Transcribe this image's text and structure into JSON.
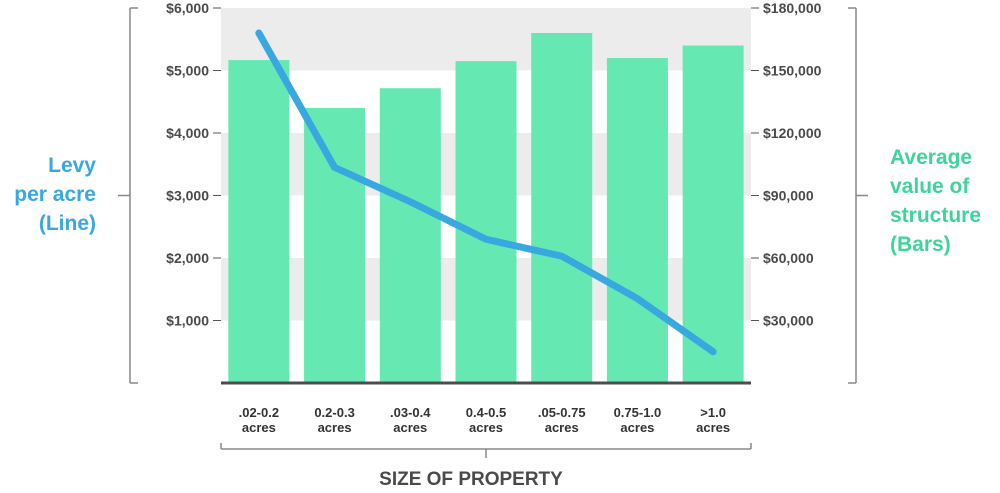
{
  "chart_data": {
    "type": "bar",
    "title": "",
    "categories": [
      [
        ".02-0.2",
        "acres"
      ],
      [
        "0.2-0.3",
        "acres"
      ],
      [
        ".03-0.4",
        "acres"
      ],
      [
        "0.4-0.5",
        "acres"
      ],
      [
        ".05-0.75",
        "acres"
      ],
      [
        "0.75-1.0",
        "acres"
      ],
      [
        ">1.0",
        "acres"
      ]
    ],
    "xlabel": "SIZE OF PROPERTY",
    "left_axis": {
      "label_lines": [
        "Levy",
        "per acre",
        "(Line)"
      ],
      "ylim": [
        0,
        6000
      ],
      "ticks": [
        1000,
        2000,
        3000,
        4000,
        5000,
        6000
      ],
      "tick_labels": [
        "$1,000",
        "$2,000",
        "$3,000",
        "$4,000",
        "$5,000",
        "$6,000"
      ]
    },
    "right_axis": {
      "label_lines": [
        "Average",
        "value of",
        "structure",
        "(Bars)"
      ],
      "ylim": [
        0,
        180000
      ],
      "ticks": [
        30000,
        60000,
        90000,
        120000,
        150000,
        180000
      ],
      "tick_labels": [
        "$30,000",
        "$60,000",
        "$90,000",
        "$120,000",
        "$150,000",
        "$180,000"
      ]
    },
    "series": [
      {
        "kind": "bar",
        "axis": "right",
        "values": [
          155000,
          132000,
          141500,
          154500,
          168000,
          156000,
          162000
        ]
      },
      {
        "kind": "line",
        "axis": "left",
        "values": [
          5600,
          3450,
          2900,
          2300,
          2030,
          1350,
          500
        ]
      }
    ],
    "grid": "alternating bands",
    "colors": {
      "bar": "#66e8b3",
      "line": "#3aa8e0",
      "band": "#ececec",
      "left_label": "#3aa8e0",
      "right_label": "#3ed49a",
      "axis": "#555555",
      "bracket": "#888888"
    }
  }
}
